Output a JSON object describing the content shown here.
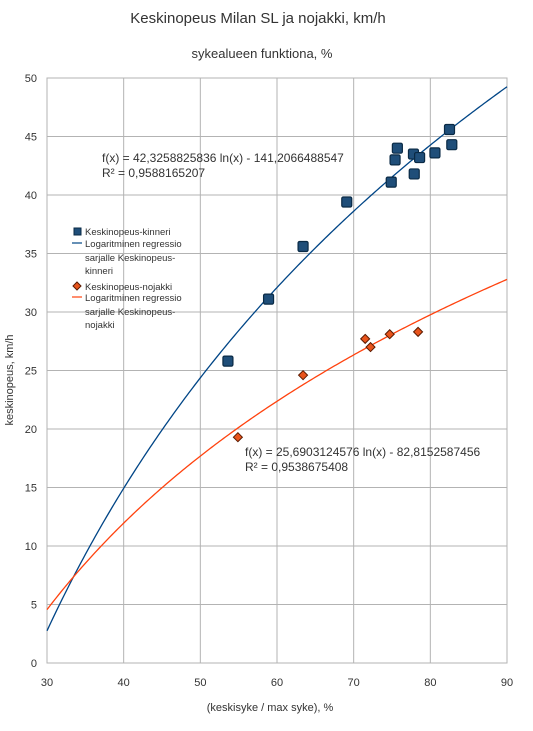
{
  "chart_data": {
    "type": "scatter",
    "title": "Keskinopeus Milan SL ja nojakki, km/h",
    "subtitle": "sykealueen funktiona, %",
    "xlabel": "(keskisyke / max syke), %",
    "ylabel": "keskinopeus, km/h",
    "xlim": [
      30,
      90
    ],
    "ylim": [
      0,
      50
    ],
    "xticks": [
      30,
      40,
      50,
      60,
      70,
      80,
      90
    ],
    "yticks": [
      0,
      5,
      10,
      15,
      20,
      25,
      30,
      35,
      40,
      45,
      50
    ],
    "grid": true,
    "legend_position": "left",
    "series": [
      {
        "name": "Keskinopeus-kinneri",
        "marker": "square",
        "color": "#1f4e79",
        "fill": "#1f4e79",
        "points": [
          [
            53.6,
            25.8
          ],
          [
            58.9,
            31.1
          ],
          [
            63.4,
            35.6
          ],
          [
            69.1,
            39.4
          ],
          [
            74.9,
            41.1
          ],
          [
            75.4,
            43.0
          ],
          [
            75.7,
            44.0
          ],
          [
            77.8,
            43.5
          ],
          [
            77.9,
            41.8
          ],
          [
            78.6,
            43.2
          ],
          [
            80.6,
            43.6
          ],
          [
            82.5,
            45.6
          ],
          [
            82.8,
            44.3
          ]
        ]
      },
      {
        "name": "Keskinopeus-nojakki",
        "marker": "diamond",
        "color": "#5a1a00",
        "fill": "#e8541c",
        "points": [
          [
            54.9,
            19.3
          ],
          [
            63.4,
            24.6
          ],
          [
            71.5,
            27.7
          ],
          [
            72.2,
            27.0
          ],
          [
            74.7,
            28.1
          ],
          [
            78.4,
            28.3
          ]
        ]
      }
    ],
    "trendlines": [
      {
        "name": "Logaritminen regressio sarjalle Keskinopeus-kinneri",
        "legend_lines": [
          "Logaritminen regressio",
          "sarjalle Keskinopeus-",
          "kinneri"
        ],
        "type": "log",
        "a": 42.3258825836,
        "b": -141.2066488547,
        "color": "#004586",
        "equation": "f(x) = 42,3258825836 ln(x) - 141,2066488547",
        "r2": "R² = 0,9588165207"
      },
      {
        "name": "Logaritminen regressio sarjalle Keskinopeus-nojakki",
        "legend_lines": [
          "Logaritminen regressio",
          "sarjalle Keskinopeus-",
          "nojakki"
        ],
        "type": "log",
        "a": 25.6903124576,
        "b": -82.8152587456,
        "color": "#ff420e",
        "equation": "f(x) = 25,6903124576 ln(x) - 82,8152587456",
        "r2": "R² = 0,9538675408"
      }
    ]
  }
}
